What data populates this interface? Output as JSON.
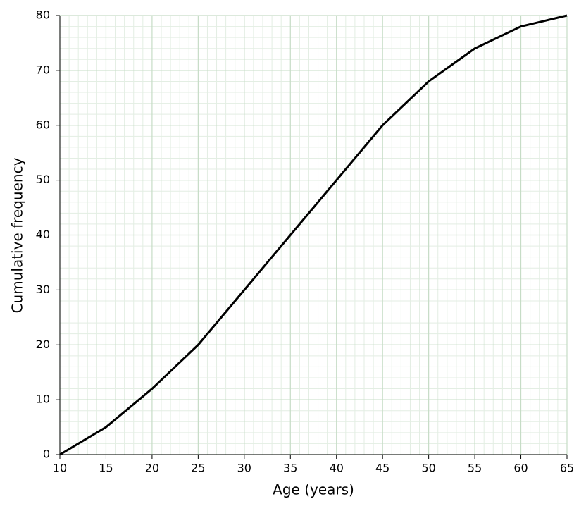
{
  "chart_data": {
    "type": "line",
    "x": [
      10,
      15,
      20,
      25,
      30,
      35,
      40,
      45,
      50,
      55,
      60,
      65
    ],
    "series": [
      {
        "color": "#000000",
        "values": [
          0,
          5,
          12,
          20,
          30,
          40,
          50,
          60,
          68,
          74,
          78,
          80
        ]
      }
    ],
    "x_label": "Age (years)",
    "y_label": "Cumulative frequency",
    "xlim": [
      10,
      65
    ],
    "xticks": [
      10,
      15,
      20,
      25,
      30,
      35,
      40,
      45,
      50,
      55,
      60,
      65
    ],
    "ylim": [
      0,
      80
    ],
    "yticks": [
      0,
      10,
      20,
      30,
      40,
      50,
      60,
      70,
      80
    ],
    "grid": true,
    "minor_grid": true
  }
}
